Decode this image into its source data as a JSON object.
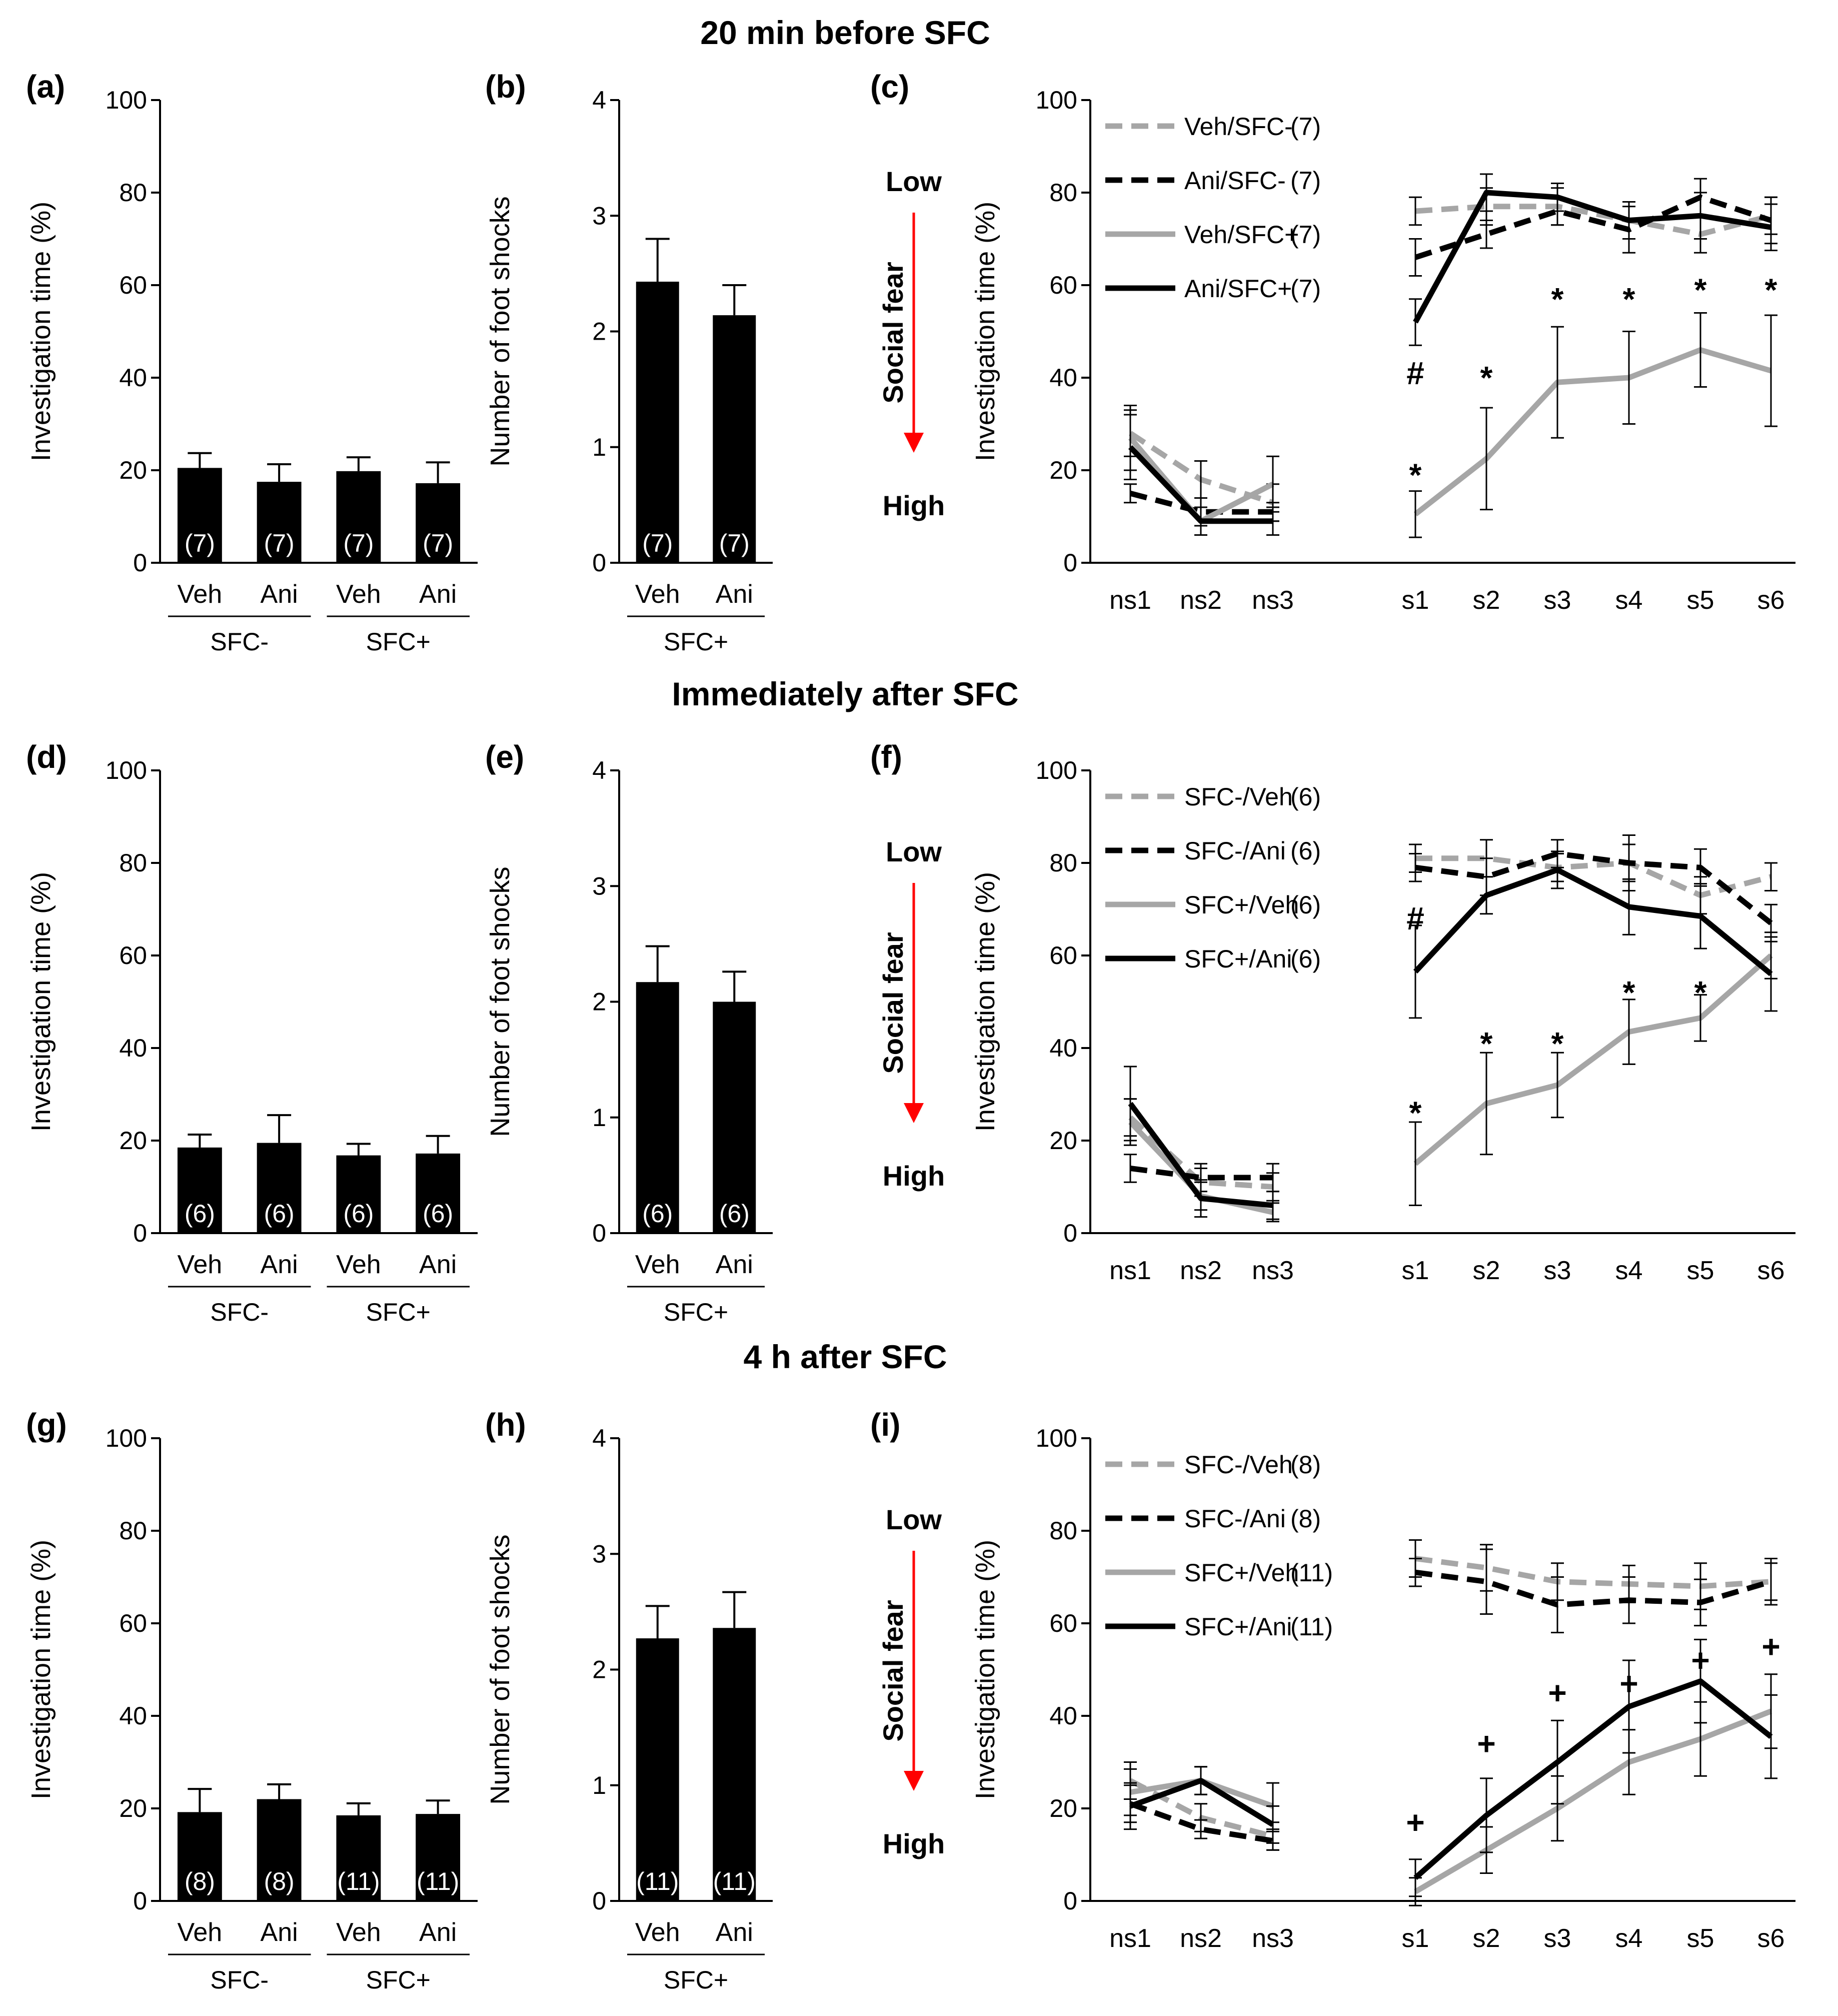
{
  "figure": {
    "sections": [
      "20 min before SFC",
      "Immediately after SFC",
      "4 h after SFC"
    ]
  },
  "colors": {
    "bar": "#000000",
    "light_line": "#a6a6a6",
    "dark_line": "#000000",
    "arrow": "#ff0000"
  },
  "chart_data": [
    {
      "panel": "(a)",
      "type": "bar",
      "ylabel": "Investigation time (%)",
      "ylim": [
        0,
        100
      ],
      "yticks": [
        0,
        20,
        40,
        60,
        80,
        100
      ],
      "categories": [
        "Veh",
        "Ani",
        "Veh",
        "Ani"
      ],
      "groups": [
        "SFC-",
        "SFC+"
      ],
      "values": [
        20.5,
        17.5,
        19.8,
        17.2
      ],
      "errors": [
        3.2,
        3.8,
        3.0,
        4.5
      ],
      "n_labels": [
        "(7)",
        "(7)",
        "(7)",
        "(7)"
      ]
    },
    {
      "panel": "(b)",
      "type": "bar",
      "ylabel": "Number of foot shocks",
      "ylim": [
        0,
        4
      ],
      "yticks": [
        0,
        1,
        2,
        3,
        4
      ],
      "categories": [
        "Veh",
        "Ani"
      ],
      "groups": [
        "SFC+"
      ],
      "values": [
        2.43,
        2.14
      ],
      "errors": [
        0.37,
        0.26
      ],
      "n_labels": [
        "(7)",
        "(7)"
      ]
    },
    {
      "panel": "(c)",
      "type": "line",
      "ylabel": "Investigation time (%)",
      "ylim": [
        0,
        100
      ],
      "yticks": [
        0,
        20,
        40,
        60,
        80,
        100
      ],
      "x": [
        "ns1",
        "ns2",
        "ns3",
        "s1",
        "s2",
        "s3",
        "s4",
        "s5",
        "s6"
      ],
      "fear_axis": {
        "low": "Low",
        "title": "Social fear",
        "high": "High"
      },
      "series": [
        {
          "name": "Veh/SFC-",
          "n": "(7)",
          "style": "light-dashed",
          "values": [
            28,
            18,
            13,
            76,
            77,
            77,
            74,
            71,
            75
          ],
          "errors": [
            5,
            4,
            4,
            3,
            4,
            4,
            4,
            4,
            4
          ]
        },
        {
          "name": "Ani/SFC-",
          "n": "(7)",
          "style": "dark-dashed",
          "values": [
            15,
            11,
            11,
            66,
            71,
            76,
            72,
            79,
            74
          ],
          "errors": [
            2,
            3,
            2,
            4,
            3,
            3,
            5,
            4,
            5
          ]
        },
        {
          "name": "Veh/SFC+",
          "n": "(7)",
          "style": "light-solid",
          "values": [
            27,
            9,
            17,
            10.5,
            22.5,
            39,
            40,
            46,
            41.5
          ],
          "errors": [
            7,
            3,
            6,
            5,
            11,
            12,
            10,
            8,
            12
          ]
        },
        {
          "name": "Ani/SFC+",
          "n": "(7)",
          "style": "dark-solid",
          "values": [
            25,
            9,
            9,
            52,
            80,
            79,
            74,
            75,
            72.5
          ],
          "errors": [
            7,
            3,
            3,
            5,
            4,
            3,
            4,
            5,
            5
          ]
        }
      ],
      "annotations": [
        {
          "text": "#",
          "x": "s1",
          "y": 41
        },
        {
          "text": "*",
          "x": "s1",
          "y": 19
        },
        {
          "text": "*",
          "x": "s2",
          "y": 40
        },
        {
          "text": "*",
          "x": "s3",
          "y": 57
        },
        {
          "text": "*",
          "x": "s4",
          "y": 57
        },
        {
          "text": "*",
          "x": "s5",
          "y": 59
        },
        {
          "text": "*",
          "x": "s6",
          "y": 59
        }
      ]
    },
    {
      "panel": "(d)",
      "type": "bar",
      "ylabel": "Investigation time (%)",
      "ylim": [
        0,
        100
      ],
      "yticks": [
        0,
        20,
        40,
        60,
        80,
        100
      ],
      "categories": [
        "Veh",
        "Ani",
        "Veh",
        "Ani"
      ],
      "groups": [
        "SFC-",
        "SFC+"
      ],
      "values": [
        18.5,
        19.5,
        16.8,
        17.2
      ],
      "errors": [
        2.8,
        6.0,
        2.5,
        3.8
      ],
      "n_labels": [
        "(6)",
        "(6)",
        "(6)",
        "(6)"
      ]
    },
    {
      "panel": "(e)",
      "type": "bar",
      "ylabel": "Number of foot shocks",
      "ylim": [
        0,
        4
      ],
      "yticks": [
        0,
        1,
        2,
        3,
        4
      ],
      "categories": [
        "Veh",
        "Ani"
      ],
      "groups": [
        "SFC+"
      ],
      "values": [
        2.17,
        2.0
      ],
      "errors": [
        0.31,
        0.26
      ],
      "n_labels": [
        "(6)",
        "(6)"
      ]
    },
    {
      "panel": "(f)",
      "type": "line",
      "ylabel": "Investigation time (%)",
      "ylim": [
        0,
        100
      ],
      "yticks": [
        0,
        20,
        40,
        60,
        80,
        100
      ],
      "x": [
        "ns1",
        "ns2",
        "ns3",
        "s1",
        "s2",
        "s3",
        "s4",
        "s5",
        "s6"
      ],
      "fear_axis": {
        "low": "Low",
        "title": "Social fear",
        "high": "High"
      },
      "series": [
        {
          "name": "SFC-/Veh",
          "n": "(6)",
          "style": "light-dashed",
          "values": [
            25,
            11,
            10,
            81,
            81,
            79,
            80,
            73,
            77
          ],
          "errors": [
            4,
            3,
            3,
            3,
            4,
            3,
            4,
            4,
            3
          ]
        },
        {
          "name": "SFC-/Ani",
          "n": "(6)",
          "style": "dark-dashed",
          "values": [
            14,
            12,
            12,
            79,
            77,
            82,
            80,
            79,
            67
          ],
          "errors": [
            3,
            3,
            3,
            3,
            4,
            3,
            6,
            4,
            4
          ]
        },
        {
          "name": "SFC+/Veh",
          "n": "(6)",
          "style": "light-solid",
          "values": [
            24,
            8,
            4.5,
            15,
            28,
            32,
            43.5,
            46.5,
            60
          ],
          "errors": [
            5,
            3,
            2,
            9,
            11,
            7,
            7,
            5,
            5
          ]
        },
        {
          "name": "SFC+/Ani",
          "n": "(6)",
          "style": "dark-solid",
          "values": [
            28,
            7.5,
            6,
            56.5,
            73,
            78.5,
            70.5,
            68.5,
            56
          ],
          "errors": [
            8,
            4,
            3,
            10,
            4,
            4,
            6,
            7,
            8
          ]
        }
      ],
      "annotations": [
        {
          "text": "#",
          "x": "s1",
          "y": 68
        },
        {
          "text": "*",
          "x": "s1",
          "y": 26
        },
        {
          "text": "*",
          "x": "s2",
          "y": 41
        },
        {
          "text": "*",
          "x": "s3",
          "y": 41
        },
        {
          "text": "*",
          "x": "s4",
          "y": 52
        },
        {
          "text": "*",
          "x": "s5",
          "y": 52
        }
      ]
    },
    {
      "panel": "(g)",
      "type": "bar",
      "ylabel": "Investigation time (%)",
      "ylim": [
        0,
        100
      ],
      "yticks": [
        0,
        20,
        40,
        60,
        80,
        100
      ],
      "categories": [
        "Veh",
        "Ani",
        "Veh",
        "Ani"
      ],
      "groups": [
        "SFC-",
        "SFC+"
      ],
      "values": [
        19.2,
        22.0,
        18.5,
        18.8
      ],
      "errors": [
        5.0,
        3.2,
        2.6,
        2.9
      ],
      "n_labels": [
        "(8)",
        "(8)",
        "(11)",
        "(11)"
      ]
    },
    {
      "panel": "(h)",
      "type": "bar",
      "ylabel": "Number of foot shocks",
      "ylim": [
        0,
        4
      ],
      "yticks": [
        0,
        1,
        2,
        3,
        4
      ],
      "categories": [
        "Veh",
        "Ani"
      ],
      "groups": [
        "SFC+"
      ],
      "values": [
        2.27,
        2.36
      ],
      "errors": [
        0.28,
        0.31
      ],
      "n_labels": [
        "(11)",
        "(11)"
      ]
    },
    {
      "panel": "(i)",
      "type": "line",
      "ylabel": "Investigation time (%)",
      "ylim": [
        0,
        100
      ],
      "yticks": [
        0,
        20,
        40,
        60,
        80,
        100
      ],
      "x": [
        "ns1",
        "ns2",
        "ns3",
        "s1",
        "s2",
        "s3",
        "s4",
        "s5",
        "s6"
      ],
      "fear_axis": {
        "low": "Low",
        "title": "Social fear",
        "high": "High"
      },
      "series": [
        {
          "name": "SFC-/Veh",
          "n": "(8)",
          "style": "light-dashed",
          "values": [
            26,
            18,
            14,
            74,
            72,
            69,
            68.5,
            68,
            69
          ],
          "errors": [
            4,
            3,
            3,
            4,
            5,
            4,
            4,
            5,
            5
          ]
        },
        {
          "name": "SFC-/Ani",
          "n": "(8)",
          "style": "dark-dashed",
          "values": [
            21,
            15.5,
            13,
            71,
            69,
            64,
            65,
            64.5,
            69
          ],
          "errors": [
            4,
            2,
            2,
            3,
            7,
            6,
            5,
            5,
            4
          ]
        },
        {
          "name": "SFC+/Veh",
          "n": "(11)",
          "style": "light-solid",
          "values": [
            23.5,
            26,
            20.5,
            2,
            11,
            20,
            30,
            35,
            41
          ],
          "errors": [
            5,
            3,
            5,
            3,
            5,
            7,
            7,
            8,
            8
          ]
        },
        {
          "name": "SFC+/Ani",
          "n": "(11)",
          "style": "dark-solid",
          "values": [
            20.5,
            26,
            16.5,
            5,
            18.5,
            30,
            42,
            47.5,
            35.5
          ],
          "errors": [
            5,
            3,
            4,
            4,
            8,
            9,
            10,
            9,
            9
          ]
        }
      ],
      "annotations": [
        {
          "text": "+",
          "x": "s1",
          "y": 17
        },
        {
          "text": "+",
          "x": "s2",
          "y": 34
        },
        {
          "text": "+",
          "x": "s3",
          "y": 45
        },
        {
          "text": "+",
          "x": "s4",
          "y": 47
        },
        {
          "text": "+",
          "x": "s5",
          "y": 52
        },
        {
          "text": "+",
          "x": "s6",
          "y": 55
        }
      ]
    }
  ]
}
